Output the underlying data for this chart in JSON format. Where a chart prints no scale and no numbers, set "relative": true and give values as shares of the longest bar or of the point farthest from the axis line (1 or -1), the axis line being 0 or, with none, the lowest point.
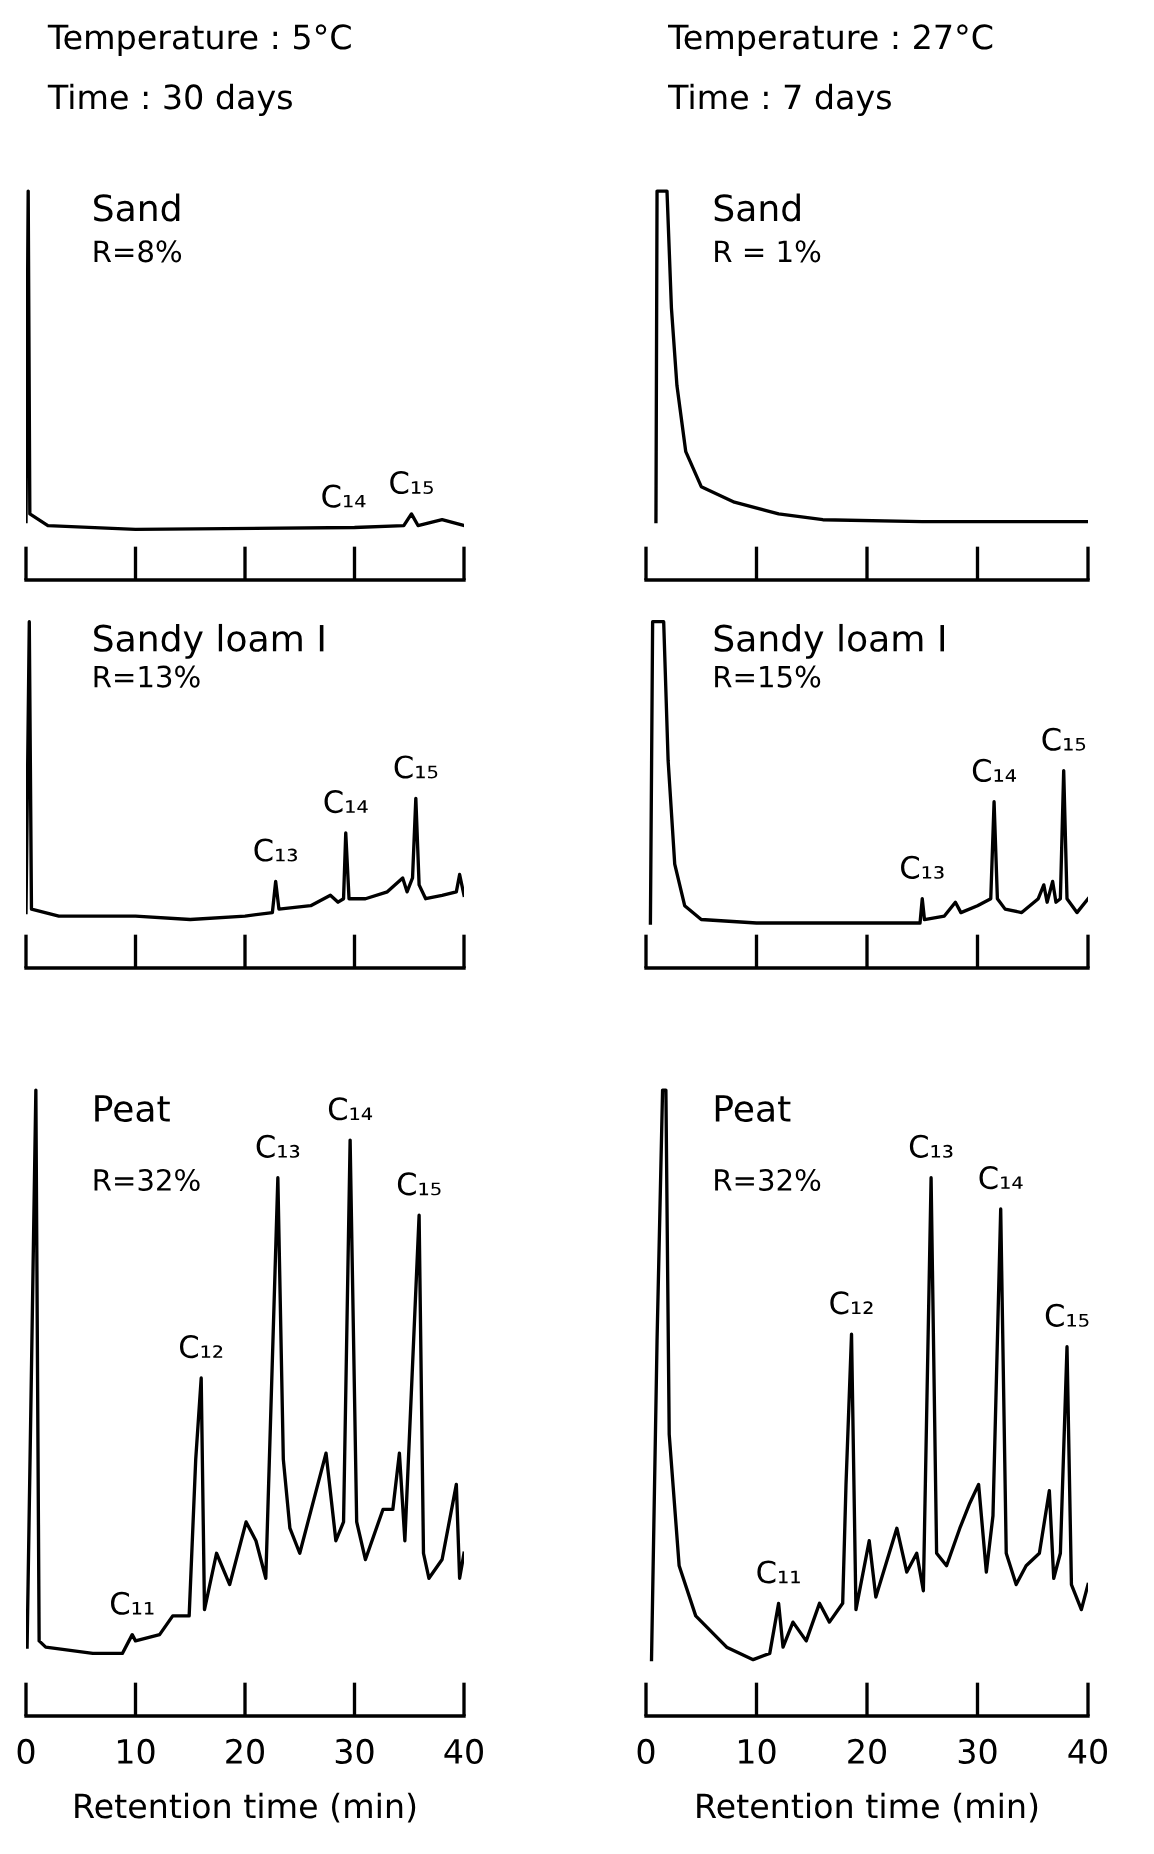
{
  "chart_data": [
    {
      "type": "line",
      "title": "Temperature : 5°C",
      "subtitle": "Time : 30 days",
      "relative": true,
      "xlim": [
        0,
        40
      ],
      "xticks": [
        0,
        10,
        20,
        30,
        40
      ],
      "tick_labels": false,
      "grid": false,
      "legend": false,
      "x": [
        0,
        0.2,
        0.35,
        2,
        10,
        30,
        34.5,
        35.2,
        35.8,
        38,
        40
      ],
      "series": [
        {
          "color": "#000000",
          "values": [
            0.15,
            1.0,
            0.17,
            0.14,
            0.13,
            0.135,
            0.14,
            0.17,
            0.14,
            0.155,
            0.14
          ]
        }
      ],
      "annotations": [
        "Sand",
        "R=8%",
        {
          "text": "C₁₄",
          "x": 29,
          "y": 0.135
        },
        {
          "text": "C₁₅",
          "x": 35.2,
          "y": 0.17
        }
      ]
    },
    {
      "type": "line",
      "title": "Temperature : 27°C",
      "subtitle": "Time : 7 days",
      "relative": true,
      "xlim": [
        0,
        40
      ],
      "xticks": [
        0,
        10,
        20,
        30,
        40
      ],
      "tick_labels": false,
      "grid": false,
      "legend": false,
      "x": [
        0.9,
        1.0,
        1.9,
        2.3,
        2.8,
        3.6,
        5,
        8,
        12,
        16,
        25,
        40
      ],
      "series": [
        {
          "color": "#000000",
          "values": [
            0.15,
            1.0,
            1.0,
            0.7,
            0.5,
            0.33,
            0.24,
            0.2,
            0.17,
            0.155,
            0.15,
            0.15
          ]
        }
      ],
      "annotations": [
        "Sand",
        "R = 1%"
      ]
    },
    {
      "type": "line",
      "relative": true,
      "xlim": [
        0,
        40
      ],
      "xticks": [
        0,
        10,
        20,
        30,
        40
      ],
      "tick_labels": false,
      "grid": false,
      "legend": false,
      "x": [
        0,
        0.3,
        0.5,
        3,
        10,
        15,
        20,
        22.5,
        22.8,
        23.1,
        26,
        27.8,
        28.5,
        29.0,
        29.2,
        29.5,
        31,
        33,
        34.4,
        34.8,
        35.3,
        35.6,
        35.9,
        36.5,
        38,
        39.3,
        39.6,
        40
      ],
      "series": [
        {
          "color": "#000000",
          "values": [
            0.16,
            1.0,
            0.17,
            0.15,
            0.15,
            0.14,
            0.15,
            0.16,
            0.25,
            0.17,
            0.18,
            0.21,
            0.19,
            0.2,
            0.39,
            0.2,
            0.2,
            0.22,
            0.26,
            0.22,
            0.26,
            0.49,
            0.24,
            0.2,
            0.21,
            0.22,
            0.27,
            0.21
          ]
        }
      ],
      "annotations": [
        "Sandy loam I",
        "R=13%",
        {
          "text": "C₁₃",
          "x": 22.8,
          "y": 0.25
        },
        {
          "text": "C₁₄",
          "x": 29.2,
          "y": 0.39
        },
        {
          "text": "C₁₅",
          "x": 35.6,
          "y": 0.49
        }
      ]
    },
    {
      "type": "line",
      "relative": true,
      "xlim": [
        0,
        40
      ],
      "xticks": [
        0,
        10,
        20,
        30,
        40
      ],
      "tick_labels": false,
      "grid": false,
      "legend": false,
      "x": [
        0.4,
        0.6,
        1.6,
        2.0,
        2.6,
        3.5,
        5,
        10,
        20,
        24.8,
        25,
        25.2,
        27,
        28,
        28.5,
        30,
        31.2,
        31.5,
        31.8,
        32.5,
        34,
        35.5,
        36,
        36.3,
        36.8,
        37.1,
        37.5,
        37.8,
        38.1,
        39,
        40
      ],
      "series": [
        {
          "color": "#000000",
          "values": [
            0.13,
            1.0,
            1.0,
            0.6,
            0.3,
            0.18,
            0.14,
            0.13,
            0.13,
            0.13,
            0.2,
            0.14,
            0.15,
            0.19,
            0.16,
            0.18,
            0.2,
            0.48,
            0.2,
            0.17,
            0.16,
            0.2,
            0.24,
            0.19,
            0.25,
            0.19,
            0.2,
            0.57,
            0.2,
            0.16,
            0.2
          ]
        }
      ],
      "annotations": [
        "Sandy loam I",
        "R=15%",
        {
          "text": "C₁₃",
          "x": 25,
          "y": 0.2
        },
        {
          "text": "C₁₄",
          "x": 31.5,
          "y": 0.48
        },
        {
          "text": "C₁₅",
          "x": 37.8,
          "y": 0.57
        }
      ]
    },
    {
      "type": "line",
      "relative": true,
      "xlim": [
        0,
        40
      ],
      "xticks": [
        0,
        10,
        20,
        30,
        40
      ],
      "tick_labels": "x",
      "xlabel": "Retention time (min)",
      "grid": false,
      "legend": false,
      "x": [
        0.1,
        0.9,
        1.2,
        1.8,
        6.1,
        8.8,
        9.7,
        10,
        12.2,
        13.4,
        14.9,
        15.5,
        16.0,
        16.3,
        17.4,
        18.6,
        20.1,
        21.0,
        21.9,
        23.0,
        23.5,
        24.1,
        25.0,
        26.5,
        27.4,
        28.3,
        29.0,
        29.6,
        30.2,
        31.0,
        32.6,
        33.5,
        34.1,
        34.6,
        35.9,
        36.3,
        36.8,
        38.0,
        39.3,
        39.6,
        40
      ],
      "series": [
        {
          "color": "#000000",
          "values": [
            0.11,
            1.0,
            0.12,
            0.11,
            0.1,
            0.1,
            0.13,
            0.12,
            0.13,
            0.16,
            0.16,
            0.41,
            0.54,
            0.17,
            0.26,
            0.21,
            0.31,
            0.28,
            0.22,
            0.86,
            0.41,
            0.3,
            0.26,
            0.36,
            0.42,
            0.28,
            0.31,
            0.92,
            0.31,
            0.25,
            0.33,
            0.33,
            0.42,
            0.28,
            0.8,
            0.26,
            0.22,
            0.25,
            0.37,
            0.22,
            0.26
          ]
        }
      ],
      "annotations": [
        "Peat",
        "R=32%",
        {
          "text": "C₁₁",
          "x": 9.7,
          "y": 0.13
        },
        {
          "text": "C₁₂",
          "x": 16.0,
          "y": 0.54
        },
        {
          "text": "C₁₃",
          "x": 23.0,
          "y": 0.86
        },
        {
          "text": "C₁₄",
          "x": 29.6,
          "y": 0.92
        },
        {
          "text": "C₁₅",
          "x": 35.9,
          "y": 0.8
        }
      ]
    },
    {
      "type": "line",
      "relative": true,
      "xlim": [
        0,
        40
      ],
      "xticks": [
        0,
        10,
        20,
        30,
        40
      ],
      "tick_labels": "x",
      "xlabel": "Retention time (min)",
      "grid": false,
      "legend": false,
      "x": [
        0.5,
        1.0,
        1.5,
        1.8,
        2.1,
        3.0,
        4.5,
        7.3,
        9.7,
        11.2,
        12.0,
        12.4,
        13.3,
        14.5,
        15.7,
        16.6,
        17.8,
        18.1,
        18.6,
        19.0,
        20.2,
        20.8,
        22.7,
        23.6,
        24.5,
        25.1,
        25.8,
        26.3,
        27.2,
        28.4,
        29.3,
        30.1,
        30.8,
        31.4,
        32.1,
        32.6,
        33.5,
        34.4,
        35.6,
        36.5,
        36.9,
        37.5,
        38.1,
        38.5,
        39.4,
        40
      ],
      "series": [
        {
          "color": "#000000",
          "values": [
            0.09,
            0.6,
            1.0,
            1.0,
            0.45,
            0.24,
            0.16,
            0.11,
            0.09,
            0.1,
            0.18,
            0.11,
            0.15,
            0.12,
            0.18,
            0.15,
            0.18,
            0.37,
            0.61,
            0.17,
            0.28,
            0.19,
            0.3,
            0.23,
            0.26,
            0.2,
            0.86,
            0.26,
            0.24,
            0.3,
            0.34,
            0.37,
            0.23,
            0.32,
            0.81,
            0.26,
            0.21,
            0.24,
            0.26,
            0.36,
            0.22,
            0.26,
            0.59,
            0.21,
            0.17,
            0.21
          ]
        }
      ],
      "annotations": [
        "Peat",
        "R=32%",
        {
          "text": "C₁₁",
          "x": 12.0,
          "y": 0.18
        },
        {
          "text": "C₁₂",
          "x": 18.6,
          "y": 0.61
        },
        {
          "text": "C₁₃",
          "x": 25.8,
          "y": 0.86
        },
        {
          "text": "C₁₄",
          "x": 32.1,
          "y": 0.81
        },
        {
          "text": "C₁₅",
          "x": 38.1,
          "y": 0.59
        }
      ]
    }
  ]
}
